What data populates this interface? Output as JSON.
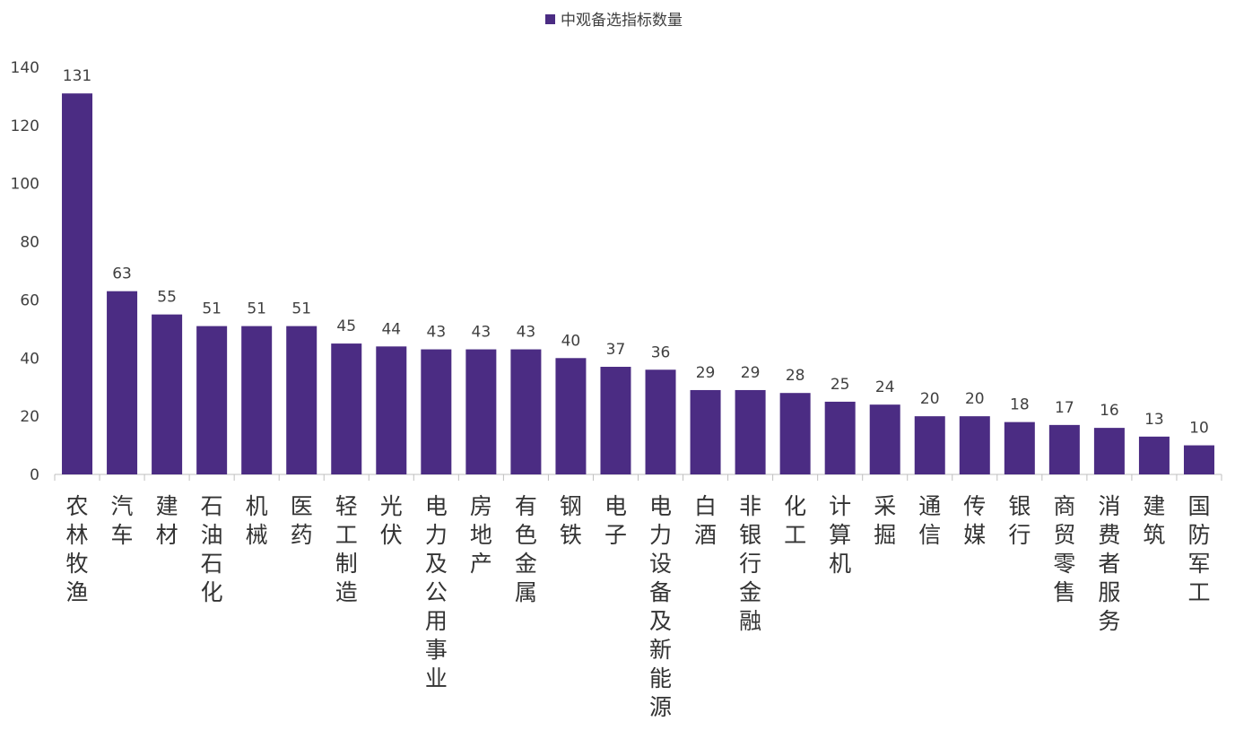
{
  "chart_data": {
    "type": "bar",
    "categories": [
      "农林牧渔",
      "汽车",
      "建材",
      "石油石化",
      "机械",
      "医药",
      "轻工制造",
      "光伏",
      "电力及公用事业",
      "房地产",
      "有色金属",
      "钢铁",
      "电子",
      "电力设备及新能源",
      "白酒",
      "非银行金融",
      "化工",
      "计算机",
      "采掘",
      "通信",
      "传媒",
      "银行",
      "商贸零售",
      "消费者服务",
      "建筑",
      "国防军工"
    ],
    "series": [
      {
        "name": "中观备选指标数量",
        "values": [
          131,
          63,
          55,
          51,
          51,
          51,
          45,
          44,
          43,
          43,
          43,
          40,
          37,
          36,
          29,
          29,
          28,
          25,
          24,
          20,
          20,
          18,
          17,
          16,
          13,
          10
        ]
      }
    ],
    "yticks": [
      "0",
      "20",
      "40",
      "60",
      "80",
      "100",
      "120",
      "140"
    ],
    "ylim": [
      0,
      140
    ],
    "title": "",
    "xlabel": "",
    "ylabel": "",
    "legend_position": "top-center",
    "grid": false,
    "bar_color": "#4B2C83",
    "axis_color": "#BFBFBF"
  }
}
